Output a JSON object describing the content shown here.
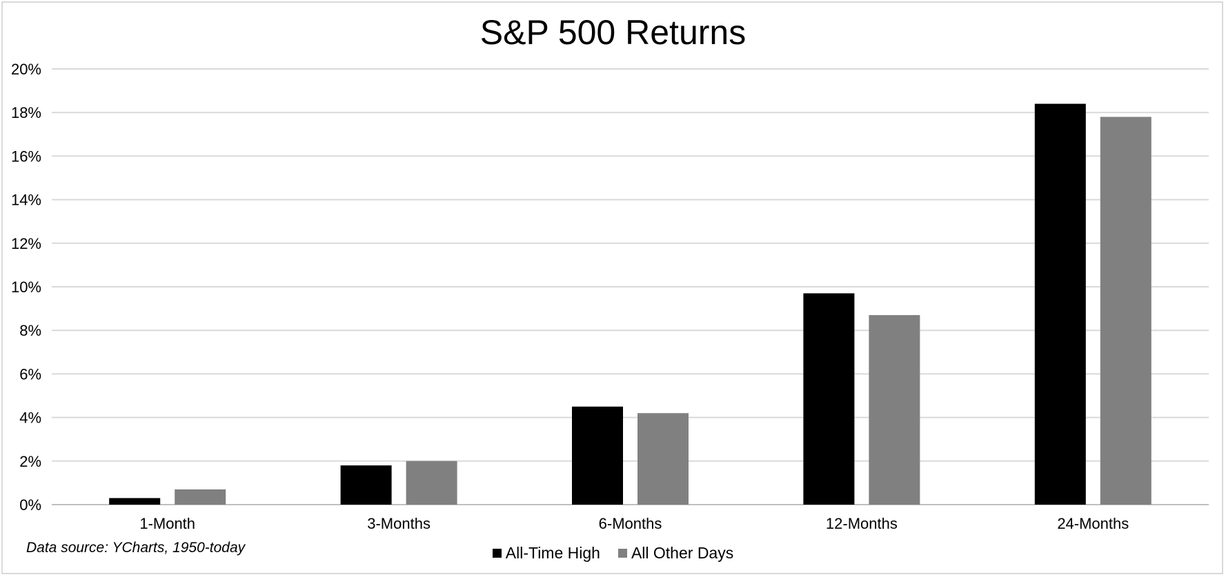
{
  "chart_data": {
    "type": "bar",
    "title": "S&P 500 Returns",
    "categories": [
      "1-Month",
      "3-Months",
      "6-Months",
      "12-Months",
      "24-Months"
    ],
    "series": [
      {
        "name": "All-Time High",
        "color": "#000000",
        "values": [
          0.3,
          1.8,
          4.5,
          9.7,
          18.4
        ]
      },
      {
        "name": "All Other Days",
        "color": "#808080",
        "values": [
          0.7,
          2.0,
          4.2,
          8.7,
          17.8
        ]
      }
    ],
    "ylim": [
      0,
      20
    ],
    "yticks": [
      0,
      2,
      4,
      6,
      8,
      10,
      12,
      14,
      16,
      18,
      20
    ],
    "ytick_labels": [
      "0%",
      "2%",
      "4%",
      "6%",
      "8%",
      "10%",
      "12%",
      "14%",
      "16%",
      "18%",
      "20%"
    ],
    "grid": true,
    "legend_position": "bottom-center",
    "source_note": "Data source: YCharts, 1950-today"
  }
}
